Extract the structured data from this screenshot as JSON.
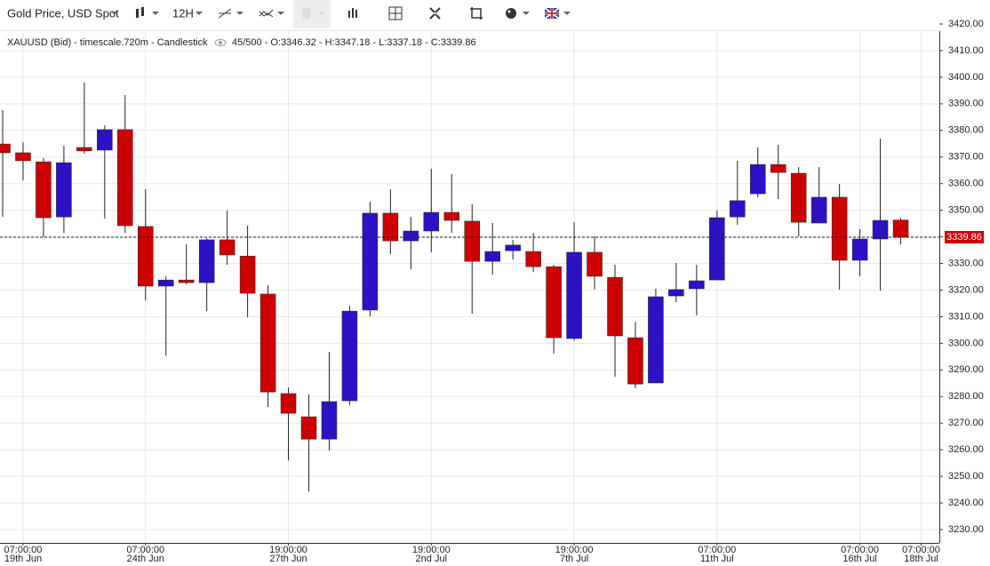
{
  "toolbar": {
    "instrument": "Gold Price, USD Spot",
    "timeframe": "12H"
  },
  "chart_data": {
    "type": "candlestick",
    "info_title": "XAUUSD (Bid) - timescale.720m - Candlestick",
    "info_values": "45/500 - O:3346.32 - H:3347.18 - L:3337.18 - C:3339.86",
    "up_color": "#2b12c4",
    "down_color": "#cc0000",
    "categories": [
      null,
      {
        "time": "07:00:00",
        "date": "19th Jun"
      },
      null,
      null,
      null,
      null,
      null,
      {
        "time": "07:00:00",
        "date": "24th Jun"
      },
      null,
      null,
      null,
      null,
      null,
      null,
      {
        "time": "19:00:00",
        "date": "27th Jun"
      },
      null,
      null,
      null,
      null,
      null,
      null,
      {
        "time": "19:00:00",
        "date": "2nd Jul"
      },
      null,
      null,
      null,
      null,
      null,
      null,
      {
        "time": "19:00:00",
        "date": "7th Jul"
      },
      null,
      null,
      null,
      null,
      null,
      null,
      {
        "time": "07:00:00",
        "date": "11th Jul"
      },
      null,
      null,
      null,
      null,
      null,
      null,
      {
        "time": "07:00:00",
        "date": "16th Jul"
      },
      null,
      null,
      {
        "time": "07:00:00",
        "date": "18th Jul"
      }
    ],
    "open": [
      3374.9,
      3371.6,
      3368.2,
      3347.5,
      3373.6,
      3372.6,
      3380.3,
      3343.9,
      3321.5,
      3323.8,
      3322.8,
      3338.9,
      3332.8,
      3318.5,
      3281.1,
      3272.4,
      3264,
      3278.4,
      3312.5,
      3348.9,
      3338.5,
      3342.2,
      3349.2,
      3345.9,
      3330.8,
      3334.8,
      3334.5,
      3328.8,
      3301.8,
      3334.2,
      3324.8,
      3302.1,
      3285.1,
      3317.8,
      3320.5,
      3323.8,
      3347.5,
      3356.2,
      3367.2,
      3363.9,
      3345.2,
      3354.9,
      3331.2,
      3339.2,
      3346.32,
      null
    ],
    "high": [
      3387.6,
      3375.6,
      3369.6,
      3374.3,
      3398.0,
      3381.9,
      3393.3,
      3357.9,
      3325.2,
      3337.2,
      3339.5,
      3349.9,
      3344.2,
      3321.8,
      3283.4,
      3280.7,
      3296.8,
      3314.1,
      3353.2,
      3357.9,
      3347.5,
      3365.6,
      3363.6,
      3352.2,
      3345.2,
      3338.9,
      3341.5,
      3329.5,
      3345.5,
      3340.2,
      3329.5,
      3308.1,
      3320.5,
      3330.2,
      3329.5,
      3349.9,
      3368.6,
      3373.6,
      3374.6,
      3366.2,
      3366.2,
      3359.9,
      3342.9,
      3376.9,
      3347.18,
      null
    ],
    "low": [
      3347.5,
      3361.2,
      3339.9,
      3341.5,
      3371.3,
      3346.9,
      3341.5,
      3316.1,
      3295.4,
      3322.2,
      3312.1,
      3329.5,
      3309.8,
      3276.1,
      3256.0,
      3244.3,
      3259.7,
      3276.7,
      3310.1,
      3333.5,
      3327.8,
      3334.2,
      3341.5,
      3311.1,
      3325.8,
      3331.5,
      3326.8,
      3296.1,
      3301.1,
      3320.2,
      3287.4,
      3283.1,
      3285.1,
      3315.5,
      3310.5,
      3323.8,
      3344.5,
      3354.9,
      3354.2,
      3340.2,
      3345.2,
      3320.2,
      3325.2,
      3319.8,
      3337.18,
      null
    ],
    "close": [
      3371.6,
      3368.6,
      3347.2,
      3367.9,
      3372.3,
      3380.3,
      3344.2,
      3321.5,
      3323.8,
      3322.8,
      3338.9,
      3333.2,
      3318.8,
      3281.7,
      3273.7,
      3264,
      3278.1,
      3312.1,
      3348.9,
      3338.5,
      3342.2,
      3349.2,
      3346.2,
      3330.8,
      3334.5,
      3336.9,
      3328.8,
      3302.1,
      3334.2,
      3325.2,
      3302.8,
      3284.7,
      3317.5,
      3320.2,
      3323.5,
      3347.2,
      3353.6,
      3367.2,
      3364.2,
      3345.5,
      3354.9,
      3331.2,
      3339.2,
      3346.2,
      3339.86,
      null
    ],
    "ylim": [
      3225,
      3421
    ],
    "yticks": [
      {
        "value": 3230,
        "label": "3230.00"
      },
      {
        "value": 3240,
        "label": "3240.00"
      },
      {
        "value": 3250,
        "label": "3250.00"
      },
      {
        "value": 3260,
        "label": "3260.00"
      },
      {
        "value": 3270,
        "label": "3270.00"
      },
      {
        "value": 3280,
        "label": "3280.00"
      },
      {
        "value": 3290,
        "label": "3290.00"
      },
      {
        "value": 3300,
        "label": "3300.00"
      },
      {
        "value": 3310,
        "label": "3310.00"
      },
      {
        "value": 3320,
        "label": "3320.00"
      },
      {
        "value": 3330,
        "label": "3330.00"
      },
      {
        "value": 3340,
        "label": "3340.00"
      },
      {
        "value": 3350,
        "label": "3350.00"
      },
      {
        "value": 3360,
        "label": "3360.00"
      },
      {
        "value": 3370,
        "label": "3370.00"
      },
      {
        "value": 3380,
        "label": "3380.00"
      },
      {
        "value": 3390,
        "label": "3390.00"
      },
      {
        "value": 3400,
        "label": "3400.00"
      },
      {
        "value": 3410,
        "label": "3410.00"
      },
      {
        "value": 3420,
        "label": "3420.00"
      }
    ],
    "grid": true
  }
}
